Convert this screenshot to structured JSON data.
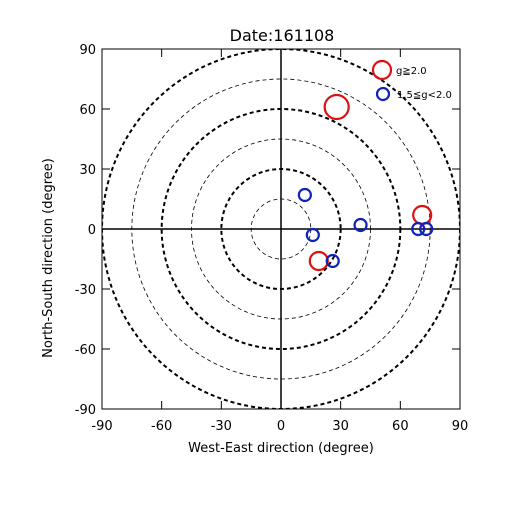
{
  "chart_data": {
    "type": "scatter",
    "title": "Date:161108",
    "xlabel": "West-East direction (degree)",
    "ylabel": "North-South direction (degree)",
    "xlim": [
      -90,
      90
    ],
    "ylim": [
      -90,
      90
    ],
    "xticks": [
      "-90",
      "-60",
      "-30",
      "0",
      "30",
      "60",
      "90"
    ],
    "yticks": [
      "90",
      "60",
      "30",
      "0",
      "-30",
      "-60",
      "-90"
    ],
    "polar_grid": {
      "heavy_dashed_radii": [
        30,
        60,
        90
      ],
      "light_dashed_radii": [
        15,
        45,
        75
      ]
    },
    "legend_position": "top-right",
    "series": [
      {
        "name": "g≧2.0",
        "color": "#dd1111",
        "points": [
          {
            "x": 28,
            "y": 61
          },
          {
            "x": 71,
            "y": 7
          },
          {
            "x": 19,
            "y": -16
          }
        ]
      },
      {
        "name": "1.5≦g<2.0",
        "color": "#1122bb",
        "points": [
          {
            "x": 12,
            "y": 17
          },
          {
            "x": 40,
            "y": 2
          },
          {
            "x": 16,
            "y": -3
          },
          {
            "x": 26,
            "y": -16
          },
          {
            "x": 69,
            "y": 0
          },
          {
            "x": 73,
            "y": 0
          }
        ]
      }
    ]
  }
}
